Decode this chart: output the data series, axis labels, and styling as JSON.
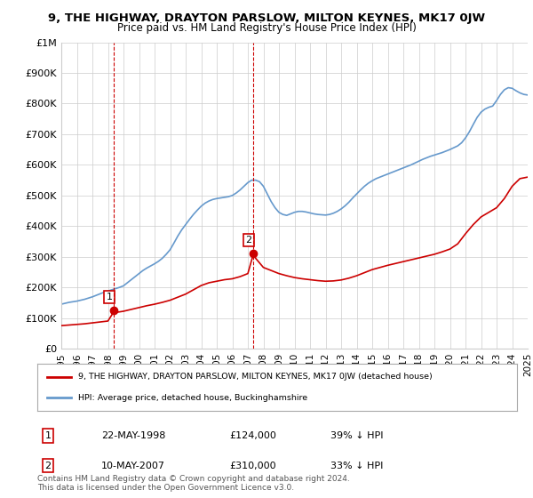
{
  "title": "9, THE HIGHWAY, DRAYTON PARSLOW, MILTON KEYNES, MK17 0JW",
  "subtitle": "Price paid vs. HM Land Registry's House Price Index (HPI)",
  "xlabel": "",
  "ylabel": "",
  "ylim": [
    0,
    1000000
  ],
  "yticks": [
    0,
    100000,
    200000,
    300000,
    400000,
    500000,
    600000,
    700000,
    800000,
    900000,
    1000000
  ],
  "ytick_labels": [
    "£0",
    "£100K",
    "£200K",
    "£300K",
    "£400K",
    "£500K",
    "£600K",
    "£700K",
    "£800K",
    "£900K",
    "£1M"
  ],
  "transactions": [
    {
      "date_num": 1998.39,
      "price": 124000,
      "label": "1",
      "date_str": "22-MAY-1998",
      "price_str": "£124,000",
      "pct_str": "39% ↓ HPI"
    },
    {
      "date_num": 2007.36,
      "price": 310000,
      "label": "2",
      "date_str": "10-MAY-2007",
      "price_str": "£310,000",
      "pct_str": "33% ↓ HPI"
    }
  ],
  "red_line_color": "#cc0000",
  "blue_line_color": "#6699cc",
  "transaction_marker_color": "#cc0000",
  "vline_color": "#cc0000",
  "grid_color": "#cccccc",
  "legend_label_red": "9, THE HIGHWAY, DRAYTON PARSLOW, MILTON KEYNES, MK17 0JW (detached house)",
  "legend_label_blue": "HPI: Average price, detached house, Buckinghamshire",
  "footer_text": "Contains HM Land Registry data © Crown copyright and database right 2024.\nThis data is licensed under the Open Government Licence v3.0.",
  "background_color": "#ffffff",
  "hpi_years": [
    1995,
    1995.25,
    1995.5,
    1995.75,
    1996,
    1996.25,
    1996.5,
    1996.75,
    1997,
    1997.25,
    1997.5,
    1997.75,
    1998,
    1998.25,
    1998.5,
    1998.75,
    1999,
    1999.25,
    1999.5,
    1999.75,
    2000,
    2000.25,
    2000.5,
    2000.75,
    2001,
    2001.25,
    2001.5,
    2001.75,
    2002,
    2002.25,
    2002.5,
    2002.75,
    2003,
    2003.25,
    2003.5,
    2003.75,
    2004,
    2004.25,
    2004.5,
    2004.75,
    2005,
    2005.25,
    2005.5,
    2005.75,
    2006,
    2006.25,
    2006.5,
    2006.75,
    2007,
    2007.25,
    2007.5,
    2007.75,
    2008,
    2008.25,
    2008.5,
    2008.75,
    2009,
    2009.25,
    2009.5,
    2009.75,
    2010,
    2010.25,
    2010.5,
    2010.75,
    2011,
    2011.25,
    2011.5,
    2011.75,
    2012,
    2012.25,
    2012.5,
    2012.75,
    2013,
    2013.25,
    2013.5,
    2013.75,
    2014,
    2014.25,
    2014.5,
    2014.75,
    2015,
    2015.25,
    2015.5,
    2015.75,
    2016,
    2016.25,
    2016.5,
    2016.75,
    2017,
    2017.25,
    2017.5,
    2017.75,
    2018,
    2018.25,
    2018.5,
    2018.75,
    2019,
    2019.25,
    2019.5,
    2019.75,
    2020,
    2020.25,
    2020.5,
    2020.75,
    2021,
    2021.25,
    2021.5,
    2021.75,
    2022,
    2022.25,
    2022.5,
    2022.75,
    2023,
    2023.25,
    2023.5,
    2023.75,
    2024,
    2024.25,
    2024.5,
    2024.75,
    2025
  ],
  "hpi_values": [
    145000,
    148000,
    151000,
    153000,
    155000,
    158000,
    161000,
    165000,
    169000,
    174000,
    179000,
    184000,
    188000,
    192000,
    196000,
    200000,
    205000,
    215000,
    225000,
    235000,
    245000,
    255000,
    263000,
    270000,
    277000,
    285000,
    295000,
    308000,
    323000,
    345000,
    368000,
    388000,
    405000,
    422000,
    438000,
    452000,
    465000,
    475000,
    482000,
    487000,
    490000,
    492000,
    494000,
    496000,
    500000,
    508000,
    518000,
    530000,
    542000,
    550000,
    550000,
    545000,
    530000,
    505000,
    480000,
    460000,
    445000,
    438000,
    435000,
    440000,
    445000,
    448000,
    448000,
    446000,
    443000,
    440000,
    438000,
    437000,
    436000,
    438000,
    442000,
    448000,
    456000,
    466000,
    478000,
    492000,
    505000,
    518000,
    530000,
    540000,
    548000,
    555000,
    560000,
    565000,
    570000,
    575000,
    580000,
    585000,
    590000,
    595000,
    600000,
    606000,
    612000,
    618000,
    623000,
    628000,
    632000,
    636000,
    640000,
    645000,
    650000,
    656000,
    662000,
    672000,
    688000,
    708000,
    732000,
    755000,
    772000,
    782000,
    788000,
    792000,
    810000,
    830000,
    845000,
    852000,
    850000,
    842000,
    835000,
    830000,
    828000
  ],
  "red_years": [
    1995,
    1995.5,
    1996,
    1996.5,
    1997,
    1997.5,
    1998,
    1998.25,
    1998.39,
    1998.5,
    1999,
    1999.5,
    2000,
    2000.5,
    2001,
    2001.5,
    2002,
    2002.5,
    2003,
    2003.5,
    2004,
    2004.5,
    2005,
    2005.5,
    2006,
    2006.5,
    2007,
    2007.25,
    2007.36,
    2007.5,
    2007.75,
    2008,
    2008.5,
    2009,
    2009.5,
    2010,
    2010.5,
    2011,
    2011.5,
    2012,
    2012.5,
    2013,
    2013.5,
    2014,
    2014.5,
    2015,
    2015.5,
    2016,
    2016.5,
    2017,
    2017.5,
    2018,
    2018.5,
    2019,
    2019.5,
    2020,
    2020.5,
    2021,
    2021.5,
    2022,
    2022.5,
    2023,
    2023.5,
    2024,
    2024.5,
    2025
  ],
  "red_values": [
    75000,
    77000,
    79000,
    81000,
    84000,
    87000,
    90000,
    110000,
    124000,
    118000,
    122000,
    128000,
    134000,
    140000,
    145000,
    151000,
    158000,
    168000,
    178000,
    192000,
    206000,
    215000,
    220000,
    225000,
    228000,
    235000,
    245000,
    290000,
    310000,
    295000,
    280000,
    265000,
    255000,
    245000,
    238000,
    232000,
    228000,
    225000,
    222000,
    220000,
    221000,
    224000,
    230000,
    238000,
    248000,
    258000,
    265000,
    272000,
    278000,
    284000,
    290000,
    296000,
    302000,
    308000,
    316000,
    325000,
    342000,
    375000,
    405000,
    430000,
    445000,
    460000,
    490000,
    530000,
    555000,
    560000
  ],
  "xlim": [
    1995,
    2025
  ],
  "xticks": [
    1995,
    1996,
    1997,
    1998,
    1999,
    2000,
    2001,
    2002,
    2003,
    2004,
    2005,
    2006,
    2007,
    2008,
    2009,
    2010,
    2011,
    2012,
    2013,
    2014,
    2015,
    2016,
    2017,
    2018,
    2019,
    2020,
    2021,
    2022,
    2023,
    2024,
    2025
  ]
}
